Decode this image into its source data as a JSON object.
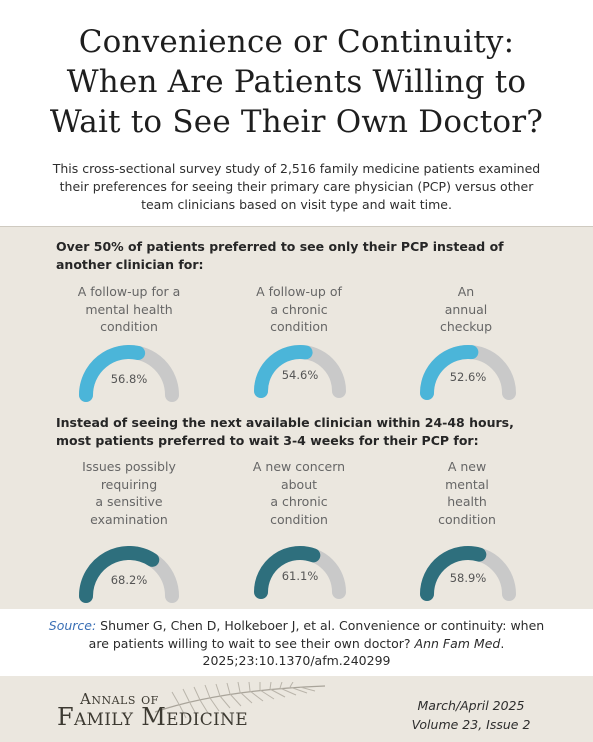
{
  "title_lines": [
    "Convenience or Continuity:",
    "When Are Patients Willing to",
    "Wait to See Their Own Doctor?"
  ],
  "intro": "This cross-sectional survey study of 2,516 family medicine patients examined their preferences for seeing their primary care physician (PCP) versus other team clinicians based on visit type and wait time.",
  "sections": [
    {
      "heading": "Over 50% of patients preferred to see only their PCP instead of another clinician for:",
      "color": "#4bb5d9",
      "gauges": [
        {
          "label_lines": [
            "A follow-up for a",
            "mental health",
            "condition"
          ],
          "value": 56.8,
          "display": "56.8%"
        },
        {
          "label_lines": [
            "A follow-up of",
            "a chronic",
            "condition"
          ],
          "value": 54.6,
          "display": "54.6%"
        },
        {
          "label_lines": [
            "An",
            "annual",
            "checkup"
          ],
          "value": 52.6,
          "display": "52.6%"
        }
      ]
    },
    {
      "heading": "Instead of seeing the next available clinician within 24-48 hours, most patients preferred to wait 3-4 weeks for their PCP for:",
      "color": "#2e6f7d",
      "gauges": [
        {
          "label_lines": [
            "Issues possibly",
            "requiring",
            "a sensitive",
            "examination"
          ],
          "value": 68.2,
          "display": "68.2%"
        },
        {
          "label_lines": [
            "A new concern",
            "about",
            "a chronic",
            "condition"
          ],
          "value": 61.1,
          "display": "61.1%"
        },
        {
          "label_lines": [
            "A new",
            "mental",
            "health",
            "condition"
          ],
          "value": 58.9,
          "display": "58.9%"
        }
      ]
    }
  ],
  "gauge_track_color": "#c9c9c9",
  "source": {
    "label": "Source:",
    "text": " Shumer G, Chen D, Holkeboer J, et al. Convenience or continuity: when are patients willing to wait to see their own doctor? ",
    "journal": "Ann Fam Med",
    "tail": ". 2025;23:10.1370/afm.240299"
  },
  "footer": {
    "logo_top": "Annals of",
    "logo_bottom": "Family Medicine",
    "issue_date": "March/April 2025",
    "issue_volume": "Volume 23, Issue 2"
  }
}
